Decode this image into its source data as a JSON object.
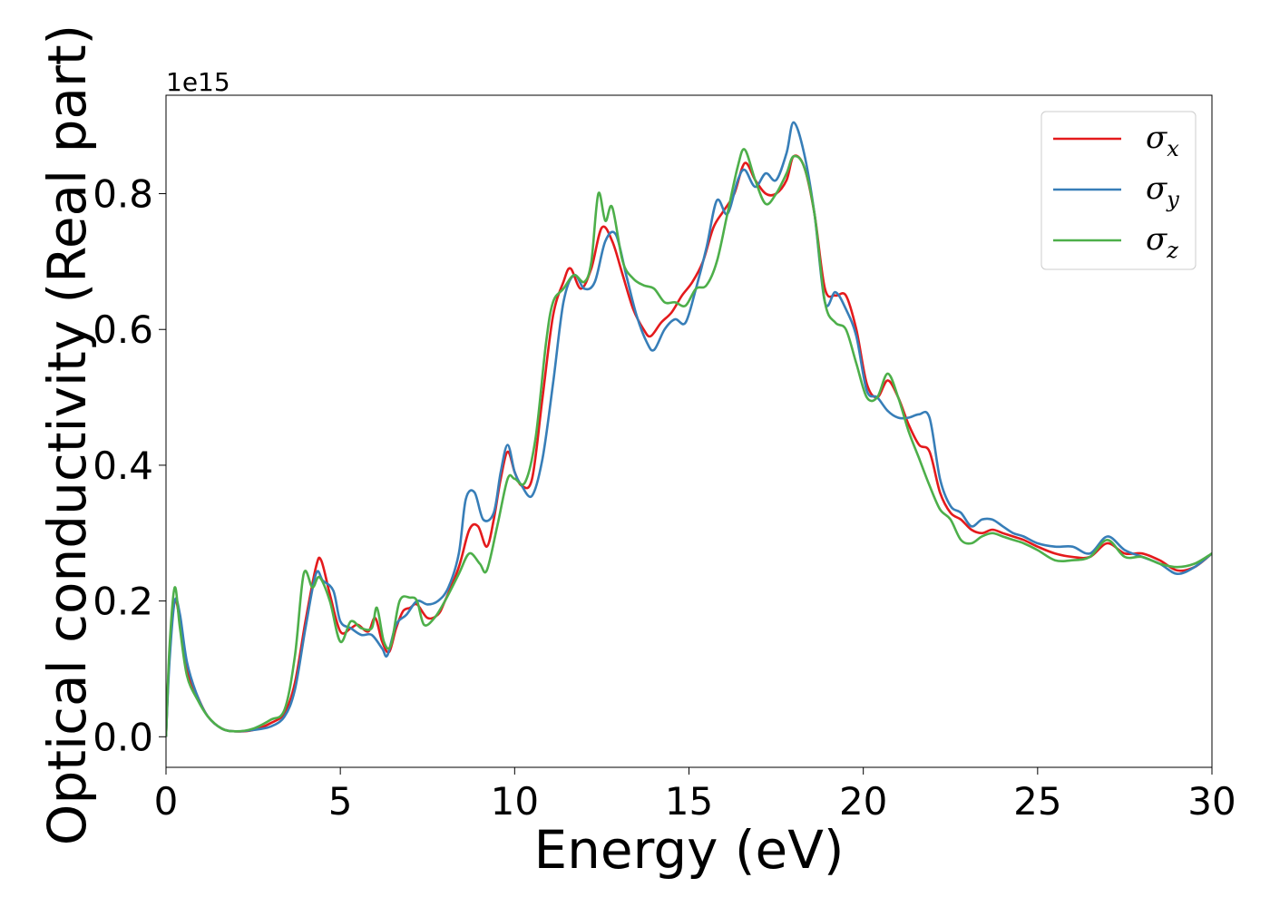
{
  "chart_data": {
    "type": "line",
    "title": "",
    "xlabel": "Energy (eV)",
    "ylabel": "Optical conductivity (Real part)",
    "y_offset_label": "1e15",
    "xlim": [
      0,
      30
    ],
    "ylim": [
      -0.045,
      0.945
    ],
    "x_ticks": [
      0,
      5,
      10,
      15,
      20,
      25,
      30
    ],
    "x_tick_labels": [
      "0",
      "5",
      "10",
      "15",
      "20",
      "25",
      "30"
    ],
    "y_ticks": [
      0.0,
      0.2,
      0.4,
      0.6,
      0.8
    ],
    "y_tick_labels": [
      "0.0",
      "0.2",
      "0.4",
      "0.6",
      "0.8"
    ],
    "grid": false,
    "legend_position": "top-right",
    "legend": [
      {
        "symbol": "σ",
        "sub": "x",
        "color": "#e41a1c"
      },
      {
        "symbol": "σ",
        "sub": "y",
        "color": "#377eb8"
      },
      {
        "symbol": "σ",
        "sub": "z",
        "color": "#4daf4a"
      }
    ],
    "series": [
      {
        "color": "#e41a1c",
        "points": [
          [
            0,
            0.0
          ],
          [
            0.1,
            0.12
          ],
          [
            0.25,
            0.2
          ],
          [
            0.4,
            0.17
          ],
          [
            0.6,
            0.1
          ],
          [
            0.9,
            0.06
          ],
          [
            1.2,
            0.03
          ],
          [
            1.6,
            0.012
          ],
          [
            2.0,
            0.008
          ],
          [
            2.5,
            0.01
          ],
          [
            3.0,
            0.02
          ],
          [
            3.4,
            0.035
          ],
          [
            3.7,
            0.08
          ],
          [
            4.0,
            0.17
          ],
          [
            4.3,
            0.25
          ],
          [
            4.45,
            0.26
          ],
          [
            4.7,
            0.21
          ],
          [
            5.0,
            0.155
          ],
          [
            5.3,
            0.16
          ],
          [
            5.5,
            0.165
          ],
          [
            5.8,
            0.155
          ],
          [
            6.0,
            0.175
          ],
          [
            6.2,
            0.14
          ],
          [
            6.4,
            0.125
          ],
          [
            6.6,
            0.16
          ],
          [
            6.8,
            0.185
          ],
          [
            7.0,
            0.19
          ],
          [
            7.2,
            0.195
          ],
          [
            7.5,
            0.175
          ],
          [
            7.8,
            0.18
          ],
          [
            8.0,
            0.2
          ],
          [
            8.4,
            0.25
          ],
          [
            8.7,
            0.305
          ],
          [
            8.95,
            0.31
          ],
          [
            9.2,
            0.28
          ],
          [
            9.4,
            0.32
          ],
          [
            9.6,
            0.38
          ],
          [
            9.8,
            0.42
          ],
          [
            10.0,
            0.39
          ],
          [
            10.2,
            0.37
          ],
          [
            10.5,
            0.38
          ],
          [
            10.8,
            0.5
          ],
          [
            11.1,
            0.62
          ],
          [
            11.4,
            0.67
          ],
          [
            11.6,
            0.69
          ],
          [
            11.9,
            0.66
          ],
          [
            12.2,
            0.69
          ],
          [
            12.5,
            0.75
          ],
          [
            12.8,
            0.73
          ],
          [
            13.1,
            0.68
          ],
          [
            13.4,
            0.63
          ],
          [
            13.7,
            0.6
          ],
          [
            13.9,
            0.59
          ],
          [
            14.2,
            0.61
          ],
          [
            14.5,
            0.625
          ],
          [
            14.8,
            0.65
          ],
          [
            15.1,
            0.67
          ],
          [
            15.4,
            0.7
          ],
          [
            15.7,
            0.75
          ],
          [
            16.0,
            0.775
          ],
          [
            16.3,
            0.8
          ],
          [
            16.6,
            0.845
          ],
          [
            16.9,
            0.82
          ],
          [
            17.2,
            0.8
          ],
          [
            17.5,
            0.8
          ],
          [
            17.8,
            0.82
          ],
          [
            18.0,
            0.855
          ],
          [
            18.3,
            0.84
          ],
          [
            18.6,
            0.77
          ],
          [
            18.9,
            0.66
          ],
          [
            19.2,
            0.65
          ],
          [
            19.5,
            0.65
          ],
          [
            19.8,
            0.6
          ],
          [
            20.1,
            0.52
          ],
          [
            20.4,
            0.5
          ],
          [
            20.7,
            0.525
          ],
          [
            21.0,
            0.5
          ],
          [
            21.3,
            0.46
          ],
          [
            21.6,
            0.43
          ],
          [
            21.9,
            0.42
          ],
          [
            22.2,
            0.36
          ],
          [
            22.5,
            0.33
          ],
          [
            22.8,
            0.32
          ],
          [
            23.1,
            0.305
          ],
          [
            23.4,
            0.3
          ],
          [
            23.7,
            0.305
          ],
          [
            24.0,
            0.3
          ],
          [
            24.3,
            0.295
          ],
          [
            24.6,
            0.29
          ],
          [
            25.0,
            0.28
          ],
          [
            25.5,
            0.27
          ],
          [
            26.0,
            0.265
          ],
          [
            26.5,
            0.265
          ],
          [
            27.0,
            0.285
          ],
          [
            27.5,
            0.27
          ],
          [
            28.0,
            0.27
          ],
          [
            28.5,
            0.26
          ],
          [
            29.0,
            0.245
          ],
          [
            29.5,
            0.25
          ],
          [
            30.0,
            0.27
          ]
        ]
      },
      {
        "color": "#377eb8",
        "points": [
          [
            0,
            0.0
          ],
          [
            0.1,
            0.11
          ],
          [
            0.25,
            0.2
          ],
          [
            0.4,
            0.18
          ],
          [
            0.6,
            0.11
          ],
          [
            0.9,
            0.06
          ],
          [
            1.2,
            0.03
          ],
          [
            1.6,
            0.012
          ],
          [
            2.0,
            0.008
          ],
          [
            2.5,
            0.01
          ],
          [
            3.0,
            0.015
          ],
          [
            3.4,
            0.03
          ],
          [
            3.7,
            0.07
          ],
          [
            4.0,
            0.16
          ],
          [
            4.3,
            0.24
          ],
          [
            4.5,
            0.23
          ],
          [
            4.8,
            0.215
          ],
          [
            5.0,
            0.17
          ],
          [
            5.3,
            0.16
          ],
          [
            5.6,
            0.15
          ],
          [
            5.9,
            0.15
          ],
          [
            6.2,
            0.13
          ],
          [
            6.35,
            0.12
          ],
          [
            6.6,
            0.165
          ],
          [
            6.9,
            0.18
          ],
          [
            7.2,
            0.2
          ],
          [
            7.5,
            0.195
          ],
          [
            7.8,
            0.2
          ],
          [
            8.1,
            0.22
          ],
          [
            8.4,
            0.27
          ],
          [
            8.6,
            0.35
          ],
          [
            8.85,
            0.36
          ],
          [
            9.1,
            0.32
          ],
          [
            9.4,
            0.33
          ],
          [
            9.6,
            0.39
          ],
          [
            9.8,
            0.43
          ],
          [
            10.0,
            0.39
          ],
          [
            10.2,
            0.37
          ],
          [
            10.5,
            0.355
          ],
          [
            10.8,
            0.41
          ],
          [
            11.1,
            0.52
          ],
          [
            11.4,
            0.64
          ],
          [
            11.7,
            0.68
          ],
          [
            12.0,
            0.66
          ],
          [
            12.3,
            0.67
          ],
          [
            12.6,
            0.73
          ],
          [
            12.9,
            0.74
          ],
          [
            13.2,
            0.68
          ],
          [
            13.5,
            0.62
          ],
          [
            13.8,
            0.58
          ],
          [
            14.0,
            0.57
          ],
          [
            14.3,
            0.6
          ],
          [
            14.6,
            0.615
          ],
          [
            14.9,
            0.61
          ],
          [
            15.2,
            0.66
          ],
          [
            15.5,
            0.72
          ],
          [
            15.8,
            0.79
          ],
          [
            16.1,
            0.77
          ],
          [
            16.4,
            0.82
          ],
          [
            16.6,
            0.835
          ],
          [
            16.9,
            0.81
          ],
          [
            17.2,
            0.83
          ],
          [
            17.5,
            0.82
          ],
          [
            17.8,
            0.86
          ],
          [
            18.0,
            0.905
          ],
          [
            18.3,
            0.86
          ],
          [
            18.6,
            0.77
          ],
          [
            18.9,
            0.64
          ],
          [
            19.2,
            0.655
          ],
          [
            19.5,
            0.63
          ],
          [
            19.8,
            0.59
          ],
          [
            20.1,
            0.51
          ],
          [
            20.4,
            0.5
          ],
          [
            20.7,
            0.48
          ],
          [
            21.0,
            0.47
          ],
          [
            21.3,
            0.47
          ],
          [
            21.6,
            0.475
          ],
          [
            21.9,
            0.47
          ],
          [
            22.2,
            0.38
          ],
          [
            22.5,
            0.34
          ],
          [
            22.8,
            0.33
          ],
          [
            23.1,
            0.31
          ],
          [
            23.4,
            0.32
          ],
          [
            23.7,
            0.32
          ],
          [
            24.0,
            0.31
          ],
          [
            24.3,
            0.3
          ],
          [
            24.6,
            0.295
          ],
          [
            25.0,
            0.285
          ],
          [
            25.5,
            0.28
          ],
          [
            26.0,
            0.28
          ],
          [
            26.5,
            0.27
          ],
          [
            27.0,
            0.295
          ],
          [
            27.5,
            0.275
          ],
          [
            28.0,
            0.265
          ],
          [
            28.5,
            0.255
          ],
          [
            29.0,
            0.24
          ],
          [
            29.5,
            0.25
          ],
          [
            30.0,
            0.27
          ]
        ]
      },
      {
        "color": "#4daf4a",
        "points": [
          [
            0,
            0.0
          ],
          [
            0.1,
            0.13
          ],
          [
            0.25,
            0.22
          ],
          [
            0.4,
            0.16
          ],
          [
            0.6,
            0.09
          ],
          [
            0.9,
            0.055
          ],
          [
            1.2,
            0.03
          ],
          [
            1.6,
            0.012
          ],
          [
            2.0,
            0.008
          ],
          [
            2.5,
            0.012
          ],
          [
            3.0,
            0.025
          ],
          [
            3.4,
            0.04
          ],
          [
            3.7,
            0.12
          ],
          [
            3.95,
            0.24
          ],
          [
            4.2,
            0.22
          ],
          [
            4.4,
            0.235
          ],
          [
            4.7,
            0.2
          ],
          [
            5.0,
            0.14
          ],
          [
            5.3,
            0.17
          ],
          [
            5.6,
            0.16
          ],
          [
            5.9,
            0.16
          ],
          [
            6.05,
            0.19
          ],
          [
            6.25,
            0.14
          ],
          [
            6.45,
            0.135
          ],
          [
            6.7,
            0.2
          ],
          [
            7.0,
            0.205
          ],
          [
            7.2,
            0.2
          ],
          [
            7.4,
            0.165
          ],
          [
            7.7,
            0.175
          ],
          [
            8.0,
            0.2
          ],
          [
            8.4,
            0.24
          ],
          [
            8.7,
            0.27
          ],
          [
            9.0,
            0.255
          ],
          [
            9.2,
            0.245
          ],
          [
            9.5,
            0.31
          ],
          [
            9.8,
            0.38
          ],
          [
            10.0,
            0.38
          ],
          [
            10.3,
            0.375
          ],
          [
            10.6,
            0.44
          ],
          [
            10.9,
            0.58
          ],
          [
            11.1,
            0.64
          ],
          [
            11.4,
            0.66
          ],
          [
            11.7,
            0.68
          ],
          [
            12.0,
            0.67
          ],
          [
            12.2,
            0.7
          ],
          [
            12.4,
            0.8
          ],
          [
            12.6,
            0.76
          ],
          [
            12.8,
            0.78
          ],
          [
            13.1,
            0.7
          ],
          [
            13.4,
            0.675
          ],
          [
            13.7,
            0.665
          ],
          [
            14.0,
            0.66
          ],
          [
            14.3,
            0.64
          ],
          [
            14.6,
            0.64
          ],
          [
            14.9,
            0.635
          ],
          [
            15.2,
            0.66
          ],
          [
            15.5,
            0.665
          ],
          [
            15.8,
            0.7
          ],
          [
            16.1,
            0.77
          ],
          [
            16.4,
            0.84
          ],
          [
            16.6,
            0.865
          ],
          [
            16.9,
            0.82
          ],
          [
            17.2,
            0.785
          ],
          [
            17.5,
            0.8
          ],
          [
            17.8,
            0.83
          ],
          [
            18.0,
            0.855
          ],
          [
            18.3,
            0.84
          ],
          [
            18.6,
            0.77
          ],
          [
            18.9,
            0.64
          ],
          [
            19.2,
            0.61
          ],
          [
            19.5,
            0.6
          ],
          [
            19.8,
            0.55
          ],
          [
            20.1,
            0.5
          ],
          [
            20.4,
            0.5
          ],
          [
            20.7,
            0.535
          ],
          [
            21.0,
            0.5
          ],
          [
            21.3,
            0.45
          ],
          [
            21.6,
            0.41
          ],
          [
            21.9,
            0.37
          ],
          [
            22.2,
            0.335
          ],
          [
            22.5,
            0.32
          ],
          [
            22.8,
            0.29
          ],
          [
            23.1,
            0.285
          ],
          [
            23.4,
            0.295
          ],
          [
            23.7,
            0.3
          ],
          [
            24.0,
            0.295
          ],
          [
            24.3,
            0.29
          ],
          [
            24.6,
            0.285
          ],
          [
            25.0,
            0.275
          ],
          [
            25.5,
            0.26
          ],
          [
            26.0,
            0.26
          ],
          [
            26.5,
            0.265
          ],
          [
            27.0,
            0.29
          ],
          [
            27.5,
            0.265
          ],
          [
            28.0,
            0.265
          ],
          [
            28.5,
            0.255
          ],
          [
            29.0,
            0.25
          ],
          [
            29.5,
            0.255
          ],
          [
            30.0,
            0.27
          ]
        ]
      }
    ]
  }
}
